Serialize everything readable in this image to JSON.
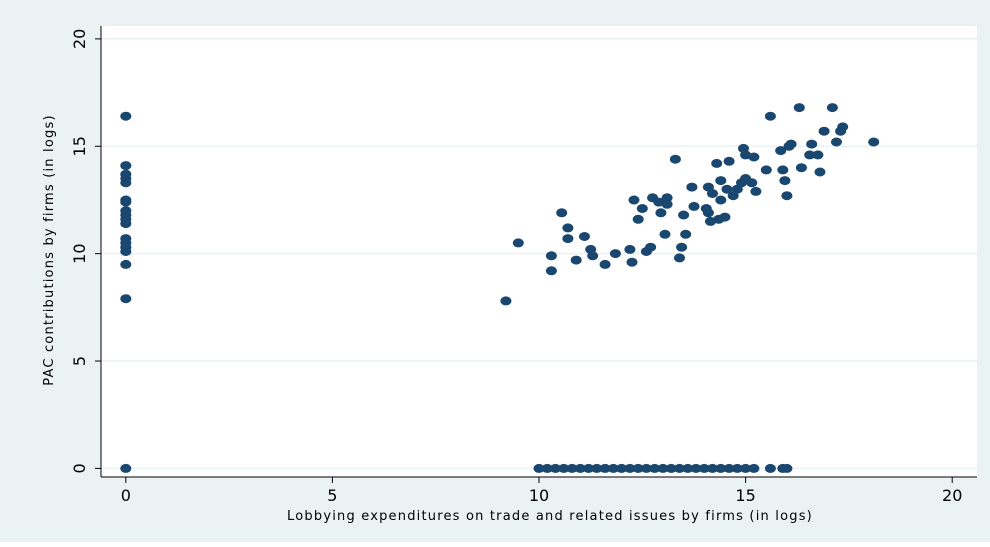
{
  "chart_data": {
    "type": "scatter",
    "xlabel": "Lobbying expenditures on trade and related issues by firms (in logs)",
    "ylabel": "PAC contributions by firms (in logs)",
    "xlim": [
      -0.6,
      20.6
    ],
    "ylim": [
      -0.4,
      20.6
    ],
    "x_ticks": [
      0,
      5,
      10,
      15,
      20
    ],
    "y_ticks": [
      0,
      5,
      10,
      15,
      20
    ],
    "grid": "horizontal",
    "marker_color": "#1a476f",
    "points": [
      [
        0,
        16.4
      ],
      [
        0,
        14.1
      ],
      [
        0,
        13.7
      ],
      [
        0,
        13.5
      ],
      [
        0,
        13.3
      ],
      [
        0,
        12.5
      ],
      [
        0,
        12.4
      ],
      [
        0,
        12.0
      ],
      [
        0,
        11.8
      ],
      [
        0,
        11.6
      ],
      [
        0,
        11.4
      ],
      [
        0,
        10.7
      ],
      [
        0,
        10.5
      ],
      [
        0,
        10.3
      ],
      [
        0,
        10.1
      ],
      [
        0,
        9.5
      ],
      [
        0,
        7.9
      ],
      [
        0,
        0
      ],
      [
        9.2,
        7.8
      ],
      [
        9.5,
        10.5
      ],
      [
        10.3,
        9.2
      ],
      [
        10.3,
        9.9
      ],
      [
        10.55,
        11.9
      ],
      [
        10.7,
        10.7
      ],
      [
        10.7,
        11.2
      ],
      [
        10.9,
        9.7
      ],
      [
        11.1,
        10.8
      ],
      [
        11.25,
        10.2
      ],
      [
        11.3,
        9.9
      ],
      [
        11.6,
        9.5
      ],
      [
        11.85,
        10.0
      ],
      [
        12.2,
        10.2
      ],
      [
        12.25,
        9.6
      ],
      [
        12.3,
        12.5
      ],
      [
        12.4,
        11.6
      ],
      [
        12.5,
        12.1
      ],
      [
        12.6,
        10.1
      ],
      [
        12.7,
        10.3
      ],
      [
        12.75,
        12.6
      ],
      [
        12.9,
        12.4
      ],
      [
        12.95,
        11.9
      ],
      [
        13.05,
        10.9
      ],
      [
        13.1,
        12.3
      ],
      [
        13.1,
        12.6
      ],
      [
        13.3,
        14.4
      ],
      [
        13.4,
        9.8
      ],
      [
        13.45,
        10.3
      ],
      [
        13.5,
        11.8
      ],
      [
        13.55,
        10.9
      ],
      [
        13.7,
        13.1
      ],
      [
        13.75,
        12.2
      ],
      [
        14.05,
        12.1
      ],
      [
        14.1,
        11.9
      ],
      [
        14.1,
        13.1
      ],
      [
        14.15,
        11.5
      ],
      [
        14.2,
        12.8
      ],
      [
        14.3,
        14.2
      ],
      [
        14.35,
        11.6
      ],
      [
        14.4,
        12.5
      ],
      [
        14.4,
        13.4
      ],
      [
        14.5,
        11.7
      ],
      [
        14.55,
        13.0
      ],
      [
        14.6,
        14.3
      ],
      [
        14.7,
        12.7
      ],
      [
        14.8,
        13.0
      ],
      [
        14.9,
        13.3
      ],
      [
        14.95,
        14.9
      ],
      [
        15.0,
        13.5
      ],
      [
        15.0,
        14.6
      ],
      [
        15.15,
        13.3
      ],
      [
        15.2,
        14.5
      ],
      [
        15.25,
        12.9
      ],
      [
        15.5,
        13.9
      ],
      [
        15.6,
        16.4
      ],
      [
        15.85,
        14.8
      ],
      [
        15.9,
        13.9
      ],
      [
        15.95,
        13.4
      ],
      [
        16.0,
        12.7
      ],
      [
        16.05,
        15.0
      ],
      [
        16.1,
        15.1
      ],
      [
        16.3,
        16.8
      ],
      [
        16.35,
        14.0
      ],
      [
        16.55,
        14.6
      ],
      [
        16.6,
        15.1
      ],
      [
        16.75,
        14.6
      ],
      [
        16.8,
        13.8
      ],
      [
        16.9,
        15.7
      ],
      [
        17.1,
        16.8
      ],
      [
        17.2,
        15.2
      ],
      [
        17.3,
        15.7
      ],
      [
        17.35,
        15.9
      ],
      [
        18.1,
        15.2
      ],
      [
        10.0,
        0
      ],
      [
        10.2,
        0
      ],
      [
        10.4,
        0
      ],
      [
        10.6,
        0
      ],
      [
        10.8,
        0
      ],
      [
        11.0,
        0
      ],
      [
        11.2,
        0
      ],
      [
        11.4,
        0
      ],
      [
        11.6,
        0
      ],
      [
        11.8,
        0
      ],
      [
        12.0,
        0
      ],
      [
        12.2,
        0
      ],
      [
        12.4,
        0
      ],
      [
        12.6,
        0
      ],
      [
        12.8,
        0
      ],
      [
        13.0,
        0
      ],
      [
        13.2,
        0
      ],
      [
        13.4,
        0
      ],
      [
        13.6,
        0
      ],
      [
        13.8,
        0
      ],
      [
        14.0,
        0
      ],
      [
        14.2,
        0
      ],
      [
        14.4,
        0
      ],
      [
        14.6,
        0
      ],
      [
        14.8,
        0
      ],
      [
        15.0,
        0
      ],
      [
        15.2,
        0
      ],
      [
        15.6,
        0
      ],
      [
        15.9,
        0
      ],
      [
        16.0,
        0
      ]
    ]
  }
}
